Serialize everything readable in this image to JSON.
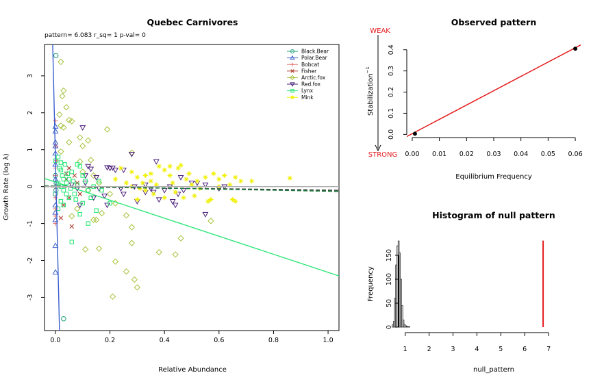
{
  "chart_data": [
    {
      "type": "scatter",
      "title": "Quebec Carnivores",
      "subtitle": "pattern= 6.083 r_sq= 1 p-val= 0",
      "xlabel": "Relative Abundance",
      "ylabel": "Growth Rate (log  λ)",
      "xlim": [
        -0.04,
        1.04
      ],
      "ylim": [
        -3.9,
        3.85
      ],
      "xticks": [
        "0.0",
        "0.2",
        "0.4",
        "0.6",
        "0.8",
        "1.0"
      ],
      "yticks": [
        "-3",
        "-2",
        "-1",
        "0",
        "1",
        "2",
        "3"
      ],
      "legend_position": "top-right",
      "series": [
        {
          "name": "Black.Bear",
          "color": "#1b9e77",
          "marker": "circle",
          "points": [
            [
              0.002,
              3.55
            ],
            [
              0.03,
              -3.58
            ],
            [
              0.0,
              0.3
            ],
            [
              0.0,
              -0.2
            ],
            [
              0.003,
              0.1
            ],
            [
              0.002,
              -0.1
            ]
          ]
        },
        {
          "name": "Polar.Bear",
          "color": "#3a5fcd",
          "marker": "triangle-up",
          "points": [
            [
              0.0,
              1.63
            ],
            [
              0.0,
              1.2
            ],
            [
              0.0,
              1.5
            ],
            [
              0.0,
              -1.6
            ],
            [
              0.0,
              -2.32
            ],
            [
              0.0,
              0.6
            ],
            [
              0.0,
              -0.5
            ],
            [
              0.0,
              0.9
            ],
            [
              0.0,
              -0.9
            ],
            [
              0.0,
              0.2
            ],
            [
              0.0,
              -0.7
            ],
            [
              0.0,
              1.1
            ]
          ]
        },
        {
          "name": "Bobcat",
          "color": "#e07070",
          "marker": "plus",
          "points": [
            [
              0.0,
              1.78
            ],
            [
              0.002,
              1.1
            ],
            [
              0.0,
              -0.6
            ],
            [
              0.0,
              0.5
            ],
            [
              0.0,
              -1.0
            ],
            [
              0.0,
              0.3
            ],
            [
              0.0,
              -0.3
            ],
            [
              0.004,
              0.7
            ],
            [
              0.0,
              0.0
            ],
            [
              0.0,
              -0.8
            ]
          ]
        },
        {
          "name": "Fisher",
          "color": "#b03a2e",
          "marker": "x",
          "points": [
            [
              0.05,
              0.5
            ],
            [
              0.05,
              -0.3
            ],
            [
              0.06,
              -1.08
            ],
            [
              0.02,
              -0.85
            ],
            [
              0.04,
              0.2
            ],
            [
              0.03,
              -0.5
            ],
            [
              0.08,
              0.1
            ],
            [
              0.07,
              0.3
            ],
            [
              0.09,
              -0.2
            ],
            [
              0.04,
              0.35
            ]
          ]
        },
        {
          "name": "Arctic.fox",
          "color": "#a6c23a",
          "marker": "diamond",
          "points": [
            [
              0.02,
              3.38
            ],
            [
              0.03,
              2.6
            ],
            [
              0.025,
              2.45
            ],
            [
              0.04,
              2.15
            ],
            [
              0.015,
              1.95
            ],
            [
              0.05,
              1.8
            ],
            [
              0.06,
              1.77
            ],
            [
              0.02,
              1.65
            ],
            [
              0.03,
              1.6
            ],
            [
              0.19,
              1.55
            ],
            [
              0.09,
              1.33
            ],
            [
              0.12,
              1.25
            ],
            [
              0.05,
              1.2
            ],
            [
              0.1,
              1.1
            ],
            [
              0.02,
              0.95
            ],
            [
              0.28,
              0.92
            ],
            [
              0.13,
              0.72
            ],
            [
              0.09,
              0.68
            ],
            [
              0.14,
              0.3
            ],
            [
              0.16,
              0.1
            ],
            [
              0.2,
              -0.2
            ],
            [
              0.22,
              -0.45
            ],
            [
              0.17,
              -0.72
            ],
            [
              0.15,
              -0.9
            ],
            [
              0.14,
              -0.9
            ],
            [
              0.26,
              -0.78
            ],
            [
              0.28,
              -1.1
            ],
            [
              0.28,
              -1.53
            ],
            [
              0.16,
              -1.68
            ],
            [
              0.11,
              -1.7
            ],
            [
              0.46,
              -1.4
            ],
            [
              0.38,
              -1.78
            ],
            [
              0.44,
              -1.84
            ],
            [
              0.22,
              -2.03
            ],
            [
              0.26,
              -2.3
            ],
            [
              0.29,
              -2.52
            ],
            [
              0.3,
              -2.73
            ],
            [
              0.21,
              -2.98
            ],
            [
              0.57,
              -0.93
            ],
            [
              0.06,
              -0.8
            ],
            [
              0.08,
              -0.6
            ],
            [
              0.1,
              0.4
            ],
            [
              0.12,
              -0.1
            ]
          ]
        },
        {
          "name": "Red.fox",
          "color": "#4b1d7a",
          "marker": "triangle-down",
          "points": [
            [
              0.1,
              1.6
            ],
            [
              0.28,
              0.88
            ],
            [
              0.37,
              0.68
            ],
            [
              0.12,
              0.55
            ],
            [
              0.13,
              0.48
            ],
            [
              0.2,
              0.5
            ],
            [
              0.21,
              0.51
            ],
            [
              0.22,
              0.45
            ],
            [
              0.25,
              0.45
            ],
            [
              0.19,
              0.52
            ],
            [
              0.11,
              0.3
            ],
            [
              0.15,
              0.25
            ],
            [
              0.24,
              -0.05
            ],
            [
              0.29,
              0.0
            ],
            [
              0.33,
              0.05
            ],
            [
              0.35,
              -0.05
            ],
            [
              0.4,
              -0.1
            ],
            [
              0.45,
              -0.2
            ],
            [
              0.47,
              -0.1
            ],
            [
              0.52,
              0.1
            ],
            [
              0.55,
              0.05
            ],
            [
              0.6,
              -0.05
            ],
            [
              0.62,
              0.0
            ],
            [
              0.3,
              -0.4
            ],
            [
              0.38,
              -0.35
            ],
            [
              0.43,
              -0.4
            ],
            [
              0.44,
              -0.5
            ],
            [
              0.25,
              -0.2
            ],
            [
              0.18,
              -0.25
            ],
            [
              0.19,
              -0.5
            ],
            [
              0.14,
              -0.3
            ],
            [
              0.55,
              -0.75
            ],
            [
              0.09,
              -0.5
            ],
            [
              0.08,
              -0.05
            ],
            [
              0.06,
              0.05
            ],
            [
              0.11,
              0.1
            ],
            [
              0.16,
              -0.05
            ],
            [
              0.33,
              -0.15
            ],
            [
              0.46,
              0.25
            ],
            [
              0.5,
              0.1
            ],
            [
              0.42,
              0.0
            ],
            [
              0.36,
              -0.15
            ]
          ]
        },
        {
          "name": "Lynx",
          "color": "#2ee87a",
          "marker": "square",
          "points": [
            [
              0.0,
              0.7
            ],
            [
              0.01,
              0.8
            ],
            [
              0.02,
              0.65
            ],
            [
              0.015,
              0.5
            ],
            [
              0.025,
              0.3
            ],
            [
              0.03,
              0.2
            ],
            [
              0.01,
              0.1
            ],
            [
              0.02,
              0.0
            ],
            [
              0.03,
              -0.1
            ],
            [
              0.04,
              -0.2
            ],
            [
              0.05,
              -0.3
            ],
            [
              0.02,
              -0.4
            ],
            [
              0.03,
              -0.5
            ],
            [
              0.01,
              -0.6
            ],
            [
              0.04,
              0.1
            ],
            [
              0.05,
              0.2
            ],
            [
              0.06,
              0.4
            ],
            [
              0.08,
              0.6
            ],
            [
              0.09,
              0.55
            ],
            [
              0.1,
              0.3
            ],
            [
              0.11,
              0.15
            ],
            [
              0.12,
              -0.1
            ],
            [
              0.13,
              -0.3
            ],
            [
              0.14,
              0.0
            ],
            [
              0.09,
              -0.75
            ],
            [
              0.12,
              -1.0
            ],
            [
              0.15,
              -0.65
            ],
            [
              0.16,
              0.15
            ],
            [
              0.06,
              -1.5
            ],
            [
              0.07,
              -0.2
            ],
            [
              0.08,
              0.05
            ],
            [
              0.17,
              -0.1
            ],
            [
              0.2,
              -0.45
            ],
            [
              0.02,
              0.45
            ],
            [
              0.035,
              0.6
            ],
            [
              0.045,
              0.35
            ],
            [
              0.055,
              -0.05
            ],
            [
              0.065,
              0.15
            ],
            [
              0.075,
              -0.35
            ],
            [
              0.1,
              -0.45
            ]
          ]
        },
        {
          "name": "Mink",
          "color": "#f0f000",
          "marker": "asterisk",
          "points": [
            [
              0.24,
              0.5
            ],
            [
              0.28,
              0.4
            ],
            [
              0.3,
              0.25
            ],
            [
              0.33,
              0.3
            ],
            [
              0.35,
              0.15
            ],
            [
              0.38,
              0.55
            ],
            [
              0.4,
              0.45
            ],
            [
              0.42,
              0.3
            ],
            [
              0.45,
              0.5
            ],
            [
              0.46,
              0.58
            ],
            [
              0.48,
              0.2
            ],
            [
              0.5,
              0.05
            ],
            [
              0.52,
              0.15
            ],
            [
              0.55,
              0.25
            ],
            [
              0.58,
              0.35
            ],
            [
              0.6,
              0.2
            ],
            [
              0.62,
              0.3
            ],
            [
              0.64,
              0.05
            ],
            [
              0.66,
              0.25
            ],
            [
              0.68,
              0.15
            ],
            [
              0.72,
              0.15
            ],
            [
              0.86,
              0.23
            ],
            [
              0.3,
              -0.35
            ],
            [
              0.33,
              -0.1
            ],
            [
              0.36,
              -0.2
            ],
            [
              0.4,
              -0.3
            ],
            [
              0.44,
              -0.15
            ],
            [
              0.47,
              -0.3
            ],
            [
              0.51,
              -0.25
            ],
            [
              0.56,
              -0.4
            ],
            [
              0.57,
              -0.35
            ],
            [
              0.65,
              -0.35
            ],
            [
              0.66,
              -0.4
            ],
            [
              0.28,
              0.0
            ],
            [
              0.32,
              0.1
            ],
            [
              0.37,
              0.05
            ],
            [
              0.43,
              0.1
            ],
            [
              0.53,
              -0.05
            ],
            [
              0.22,
              0.2
            ],
            [
              0.26,
              0.1
            ],
            [
              0.31,
              -0.05
            ],
            [
              0.35,
              0.35
            ],
            [
              0.42,
              0.55
            ],
            [
              0.49,
              0.35
            ],
            [
              0.6,
              0.0
            ]
          ]
        }
      ],
      "lines": [
        {
          "color": "#3a5fcd",
          "style": "solid",
          "from": [
            -0.01,
            3.85
          ],
          "to": [
            0.015,
            -3.9
          ]
        },
        {
          "color": "#2ee87a",
          "style": "solid",
          "from": [
            -0.04,
            0.22
          ],
          "to": [
            1.04,
            -2.42
          ]
        },
        {
          "color": "#3a3a3a",
          "style": "dashed",
          "from": [
            -0.04,
            0.0
          ],
          "to": [
            1.04,
            -0.1
          ]
        },
        {
          "color": "#1b7a3a",
          "style": "dashed",
          "from": [
            -0.04,
            0.02
          ],
          "to": [
            1.04,
            -0.13
          ]
        },
        {
          "color": "#b0b0b0",
          "style": "solid",
          "from": [
            -0.04,
            0.0
          ],
          "to": [
            1.04,
            0.0
          ]
        }
      ]
    },
    {
      "type": "line",
      "title": "Observed pattern",
      "xlabel": "Equilibrium Frequency",
      "ylabel": "Stabilization",
      "ylabel_superscript": "−1",
      "weak_label": "WEAK",
      "strong_label": "STRONG",
      "xlim": [
        -0.002,
        0.062
      ],
      "ylim": [
        -0.015,
        0.425
      ],
      "xticks": [
        "0.00",
        "0.01",
        "0.02",
        "0.03",
        "0.04",
        "0.05",
        "0.06"
      ],
      "yticks": [
        "0.0",
        "0.1",
        "0.2",
        "0.3",
        "0.4"
      ],
      "points": [
        [
          0.001,
          0.003
        ],
        [
          0.06,
          0.405
        ]
      ],
      "fit_line": {
        "color": "#e41a1c",
        "from": [
          -0.002,
          -0.01
        ],
        "to": [
          0.062,
          0.423
        ]
      }
    },
    {
      "type": "bar",
      "title": "Histogram of null pattern",
      "xlabel": "null_pattern",
      "ylabel": "Frequency",
      "xlim": [
        0.0,
        7.0
      ],
      "ylim": [
        0,
        190
      ],
      "xticks": [
        "1",
        "2",
        "3",
        "4",
        "5",
        "6",
        "7"
      ],
      "yticks": [
        "0",
        "50",
        "100",
        "150"
      ],
      "bin_width": 0.05,
      "bins": [
        {
          "x": 0.45,
          "count": 5
        },
        {
          "x": 0.5,
          "count": 12
        },
        {
          "x": 0.55,
          "count": 60
        },
        {
          "x": 0.6,
          "count": 130
        },
        {
          "x": 0.65,
          "count": 170
        },
        {
          "x": 0.7,
          "count": 180
        },
        {
          "x": 0.75,
          "count": 155
        },
        {
          "x": 0.8,
          "count": 100
        },
        {
          "x": 0.85,
          "count": 45
        },
        {
          "x": 0.9,
          "count": 15
        },
        {
          "x": 0.95,
          "count": 6
        },
        {
          "x": 1.0,
          "count": 3
        },
        {
          "x": 1.05,
          "count": 2
        },
        {
          "x": 1.1,
          "count": 1
        },
        {
          "x": 1.15,
          "count": 1
        }
      ],
      "observed_line": {
        "x": 6.77,
        "color": "#e41a1c"
      }
    }
  ]
}
